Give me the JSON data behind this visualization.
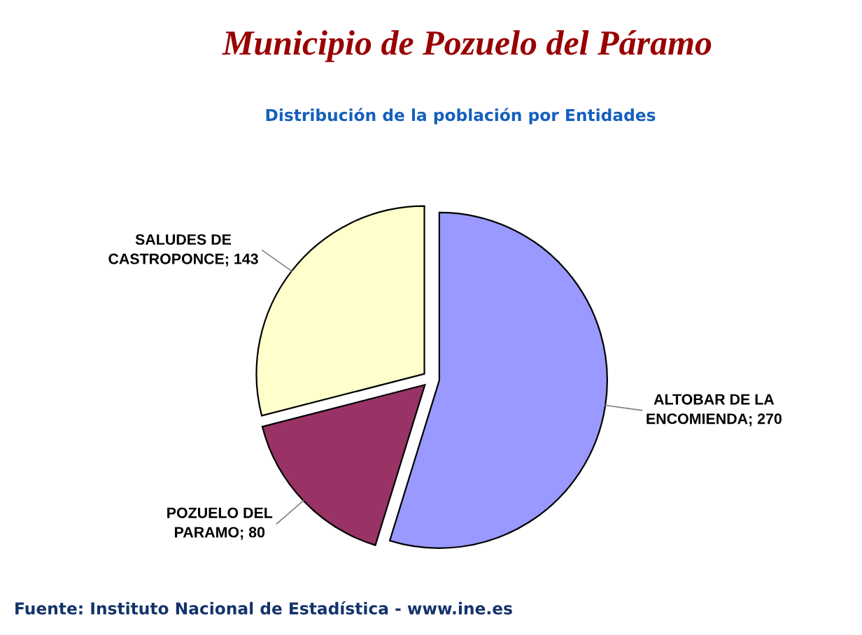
{
  "chart_data": {
    "type": "pie",
    "title": "Municipio de Pozuelo del Páramo",
    "subtitle": "Distribución de la población por Entidades",
    "categories": [
      "ALTOBAR DE LA ENCOMIENDA; 270",
      "POZUELO DEL PARAMO; 80",
      "SALUDES DE CASTROPONCE; 143"
    ],
    "values": [
      270,
      80,
      143
    ],
    "colors": [
      "#9999ff",
      "#993366",
      "#ffffcc"
    ],
    "annotations": [
      "Fuente: Instituto Nacional de Estadística - www.ine.es"
    ]
  }
}
